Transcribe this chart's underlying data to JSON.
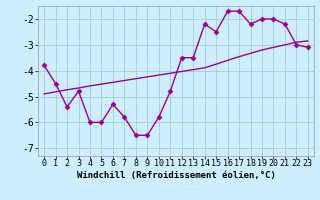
{
  "x": [
    0,
    1,
    2,
    3,
    4,
    5,
    6,
    7,
    8,
    9,
    10,
    11,
    12,
    13,
    14,
    15,
    16,
    17,
    18,
    19,
    20,
    21,
    22,
    23
  ],
  "y_hourly": [
    -3.8,
    -4.5,
    -5.4,
    -4.8,
    -6.0,
    -6.0,
    -5.3,
    -5.8,
    -6.5,
    -6.5,
    -5.8,
    -4.8,
    -3.5,
    -3.5,
    -2.2,
    -2.5,
    -1.7,
    -1.7,
    -2.2,
    -2.0,
    -2.0,
    -2.2,
    -3.0,
    -3.1
  ],
  "y_trend": [
    -4.9,
    -4.82,
    -4.74,
    -4.67,
    -4.59,
    -4.52,
    -4.45,
    -4.38,
    -4.31,
    -4.24,
    -4.17,
    -4.1,
    -4.03,
    -3.96,
    -3.89,
    -3.75,
    -3.6,
    -3.46,
    -3.33,
    -3.2,
    -3.1,
    -3.0,
    -2.9,
    -2.85
  ],
  "line_color": "#990099",
  "bg_color": "#cceeff",
  "grid_color": "#aacccc",
  "xlabel": "Windchill (Refroidissement éolien,°C)",
  "xlim": [
    -0.5,
    23.5
  ],
  "ylim": [
    -7.3,
    -1.5
  ],
  "yticks": [
    -7,
    -6,
    -5,
    -4,
    -3,
    -2
  ],
  "xtick_labels": [
    "0",
    "1",
    "2",
    "3",
    "4",
    "5",
    "6",
    "7",
    "8",
    "9",
    "10",
    "11",
    "12",
    "13",
    "14",
    "15",
    "16",
    "17",
    "18",
    "19",
    "20",
    "21",
    "22",
    "23"
  ],
  "marker": "D",
  "markersize": 2.5,
  "linewidth": 1.0,
  "label_fontsize": 6.5,
  "tick_fontsize": 6
}
